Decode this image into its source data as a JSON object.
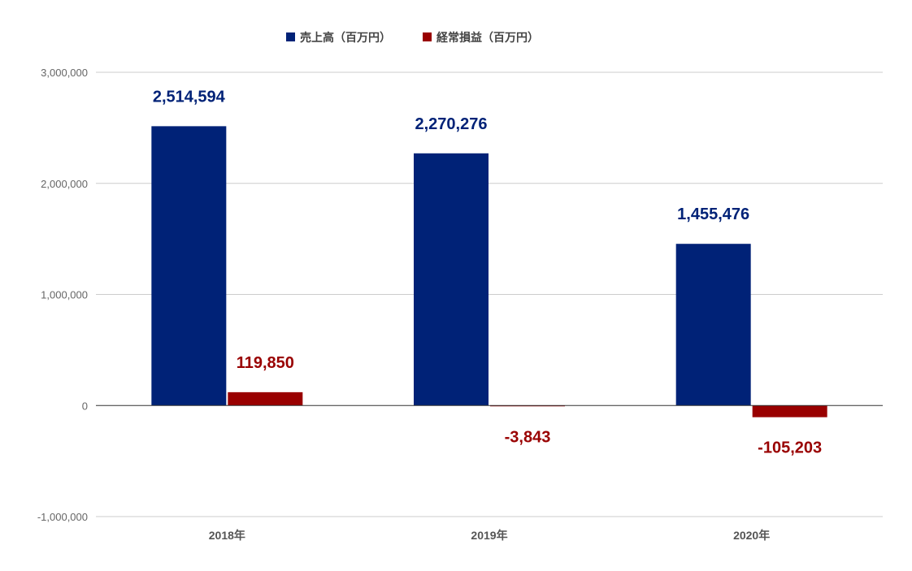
{
  "chart_data": {
    "type": "bar",
    "categories": [
      "2018年",
      "2019年",
      "2020年"
    ],
    "series": [
      {
        "name": "売上高（百万円）",
        "values": [
          2514594,
          2270276,
          1455476
        ],
        "color": "#002277",
        "labels": [
          "2,514,594",
          "2,270,276",
          "1,455,476"
        ]
      },
      {
        "name": "経常損益（百万円）",
        "values": [
          119850,
          -3843,
          -105203
        ],
        "color": "#990000",
        "labels": [
          "119,850",
          "-3,843",
          "-105,203"
        ]
      }
    ],
    "ylim": [
      -1000000,
      3000000
    ],
    "yticks": [
      -1000000,
      0,
      1000000,
      2000000,
      3000000
    ],
    "ytick_labels": [
      "-1,000,000",
      "0",
      "1,000,000",
      "2,000,000",
      "3,000,000"
    ],
    "grid": true,
    "legend_position": "top"
  }
}
